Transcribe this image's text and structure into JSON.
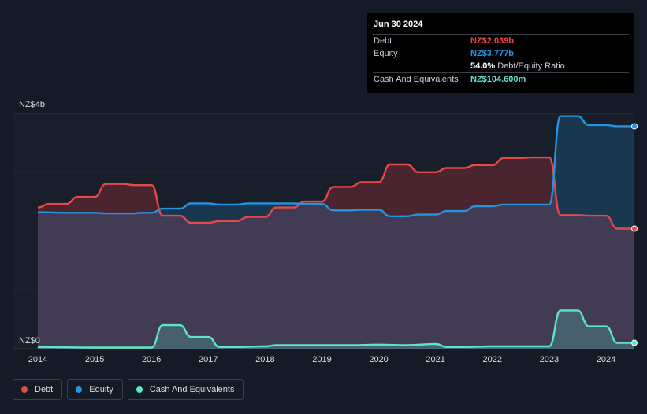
{
  "tooltip": {
    "date": "Jun 30 2024",
    "rows": [
      {
        "label": "Debt",
        "value": "NZ$2.039b",
        "color": "#e64848"
      },
      {
        "label": "Equity",
        "value": "NZ$3.777b",
        "color": "#2394df"
      },
      {
        "label": "",
        "value": "54.0%",
        "suffix": "Debt/Equity Ratio",
        "color": "#ffffff"
      },
      {
        "label": "Cash And Equivalents",
        "value": "NZ$104.600m",
        "color": "#5ce5c8"
      }
    ]
  },
  "legend": [
    {
      "label": "Debt",
      "color": "#e64848"
    },
    {
      "label": "Equity",
      "color": "#2394df"
    },
    {
      "label": "Cash And Equivalents",
      "color": "#5ce5c8"
    }
  ],
  "chart_data": {
    "type": "area",
    "y_tick_labels": [
      "NZ$0",
      "NZ$4b"
    ],
    "ylim": [
      0,
      4
    ],
    "xlim": [
      2014.0,
      2024.5
    ],
    "x_tick_labels": [
      "2014",
      "2015",
      "2016",
      "2017",
      "2018",
      "2019",
      "2020",
      "2021",
      "2022",
      "2023",
      "2024"
    ],
    "grid": true,
    "legend_position": "bottom-left",
    "series": [
      {
        "name": "Debt",
        "color": "#e64848",
        "points": [
          [
            2014.0,
            2.4
          ],
          [
            2014.2,
            2.46
          ],
          [
            2014.5,
            2.46
          ],
          [
            2014.7,
            2.58
          ],
          [
            2015.0,
            2.58
          ],
          [
            2015.2,
            2.8
          ],
          [
            2015.5,
            2.8
          ],
          [
            2015.7,
            2.78
          ],
          [
            2016.0,
            2.78
          ],
          [
            2016.2,
            2.26
          ],
          [
            2016.5,
            2.26
          ],
          [
            2016.7,
            2.14
          ],
          [
            2017.0,
            2.14
          ],
          [
            2017.2,
            2.17
          ],
          [
            2017.5,
            2.17
          ],
          [
            2017.7,
            2.24
          ],
          [
            2018.0,
            2.24
          ],
          [
            2018.2,
            2.4
          ],
          [
            2018.5,
            2.4
          ],
          [
            2018.7,
            2.5
          ],
          [
            2019.0,
            2.5
          ],
          [
            2019.2,
            2.75
          ],
          [
            2019.5,
            2.75
          ],
          [
            2019.7,
            2.83
          ],
          [
            2020.0,
            2.83
          ],
          [
            2020.2,
            3.13
          ],
          [
            2020.5,
            3.13
          ],
          [
            2020.7,
            3.0
          ],
          [
            2021.0,
            3.0
          ],
          [
            2021.2,
            3.07
          ],
          [
            2021.5,
            3.07
          ],
          [
            2021.7,
            3.12
          ],
          [
            2022.0,
            3.12
          ],
          [
            2022.2,
            3.24
          ],
          [
            2022.5,
            3.24
          ],
          [
            2022.7,
            3.25
          ],
          [
            2023.0,
            3.25
          ],
          [
            2023.2,
            2.27
          ],
          [
            2023.5,
            2.27
          ],
          [
            2023.7,
            2.26
          ],
          [
            2024.0,
            2.26
          ],
          [
            2024.2,
            2.04
          ],
          [
            2024.5,
            2.04
          ]
        ]
      },
      {
        "name": "Equity",
        "color": "#2394df",
        "points": [
          [
            2014.0,
            2.32
          ],
          [
            2014.5,
            2.31
          ],
          [
            2015.0,
            2.31
          ],
          [
            2015.2,
            2.3
          ],
          [
            2015.7,
            2.3
          ],
          [
            2015.8,
            2.31
          ],
          [
            2016.0,
            2.31
          ],
          [
            2016.2,
            2.38
          ],
          [
            2016.5,
            2.38
          ],
          [
            2016.7,
            2.47
          ],
          [
            2017.0,
            2.47
          ],
          [
            2017.2,
            2.45
          ],
          [
            2017.5,
            2.45
          ],
          [
            2017.7,
            2.47
          ],
          [
            2018.5,
            2.47
          ],
          [
            2018.7,
            2.46
          ],
          [
            2019.0,
            2.46
          ],
          [
            2019.2,
            2.35
          ],
          [
            2019.5,
            2.35
          ],
          [
            2019.7,
            2.36
          ],
          [
            2020.0,
            2.36
          ],
          [
            2020.2,
            2.25
          ],
          [
            2020.5,
            2.25
          ],
          [
            2020.7,
            2.28
          ],
          [
            2021.0,
            2.28
          ],
          [
            2021.2,
            2.34
          ],
          [
            2021.5,
            2.34
          ],
          [
            2021.7,
            2.42
          ],
          [
            2022.0,
            2.42
          ],
          [
            2022.2,
            2.45
          ],
          [
            2022.5,
            2.45
          ],
          [
            2022.7,
            2.45
          ],
          [
            2023.0,
            2.45
          ],
          [
            2023.2,
            3.95
          ],
          [
            2023.5,
            3.95
          ],
          [
            2023.7,
            3.8
          ],
          [
            2024.0,
            3.8
          ],
          [
            2024.2,
            3.78
          ],
          [
            2024.5,
            3.78
          ]
        ]
      },
      {
        "name": "Cash And Equivalents",
        "color": "#5ce5c8",
        "points": [
          [
            2014.0,
            0.03
          ],
          [
            2015.0,
            0.02
          ],
          [
            2015.5,
            0.02
          ],
          [
            2016.0,
            0.02
          ],
          [
            2016.2,
            0.4
          ],
          [
            2016.5,
            0.4
          ],
          [
            2016.7,
            0.2
          ],
          [
            2017.0,
            0.2
          ],
          [
            2017.2,
            0.03
          ],
          [
            2017.5,
            0.03
          ],
          [
            2018.0,
            0.04
          ],
          [
            2018.2,
            0.06
          ],
          [
            2018.5,
            0.06
          ],
          [
            2019.0,
            0.06
          ],
          [
            2019.5,
            0.06
          ],
          [
            2020.0,
            0.07
          ],
          [
            2020.5,
            0.06
          ],
          [
            2021.0,
            0.08
          ],
          [
            2021.2,
            0.03
          ],
          [
            2021.5,
            0.03
          ],
          [
            2022.0,
            0.04
          ],
          [
            2022.5,
            0.04
          ],
          [
            2023.0,
            0.04
          ],
          [
            2023.2,
            0.65
          ],
          [
            2023.5,
            0.65
          ],
          [
            2023.7,
            0.38
          ],
          [
            2024.0,
            0.38
          ],
          [
            2024.2,
            0.1
          ],
          [
            2024.5,
            0.1
          ]
        ]
      }
    ]
  }
}
